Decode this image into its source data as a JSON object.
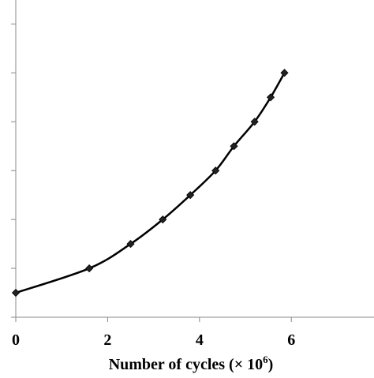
{
  "chart_data": {
    "type": "line",
    "title": "",
    "xlabel": "Number of cycles (× 10",
    "xlabel_sup": "6",
    "xlabel_close": ")",
    "ylabel": "",
    "xlim": [
      0,
      7.8
    ],
    "ylim": [
      0,
      6.2
    ],
    "xticks": [
      0,
      2,
      4,
      6
    ],
    "xtick_labels": [
      "0",
      "2",
      "4",
      "6"
    ],
    "yticks": [
      0,
      1,
      2,
      3,
      4,
      5,
      6
    ],
    "grid": false,
    "legend": "none",
    "series": [
      {
        "color": "#000000",
        "marker": "diamond",
        "x": [
          0,
          1.6,
          2.5,
          3.2,
          3.8,
          4.35,
          4.75,
          5.2,
          5.55,
          5.85
        ],
        "y": [
          0.5,
          1.0,
          1.5,
          2.0,
          2.5,
          3.0,
          3.5,
          4.0,
          4.5,
          5.0
        ]
      }
    ]
  }
}
